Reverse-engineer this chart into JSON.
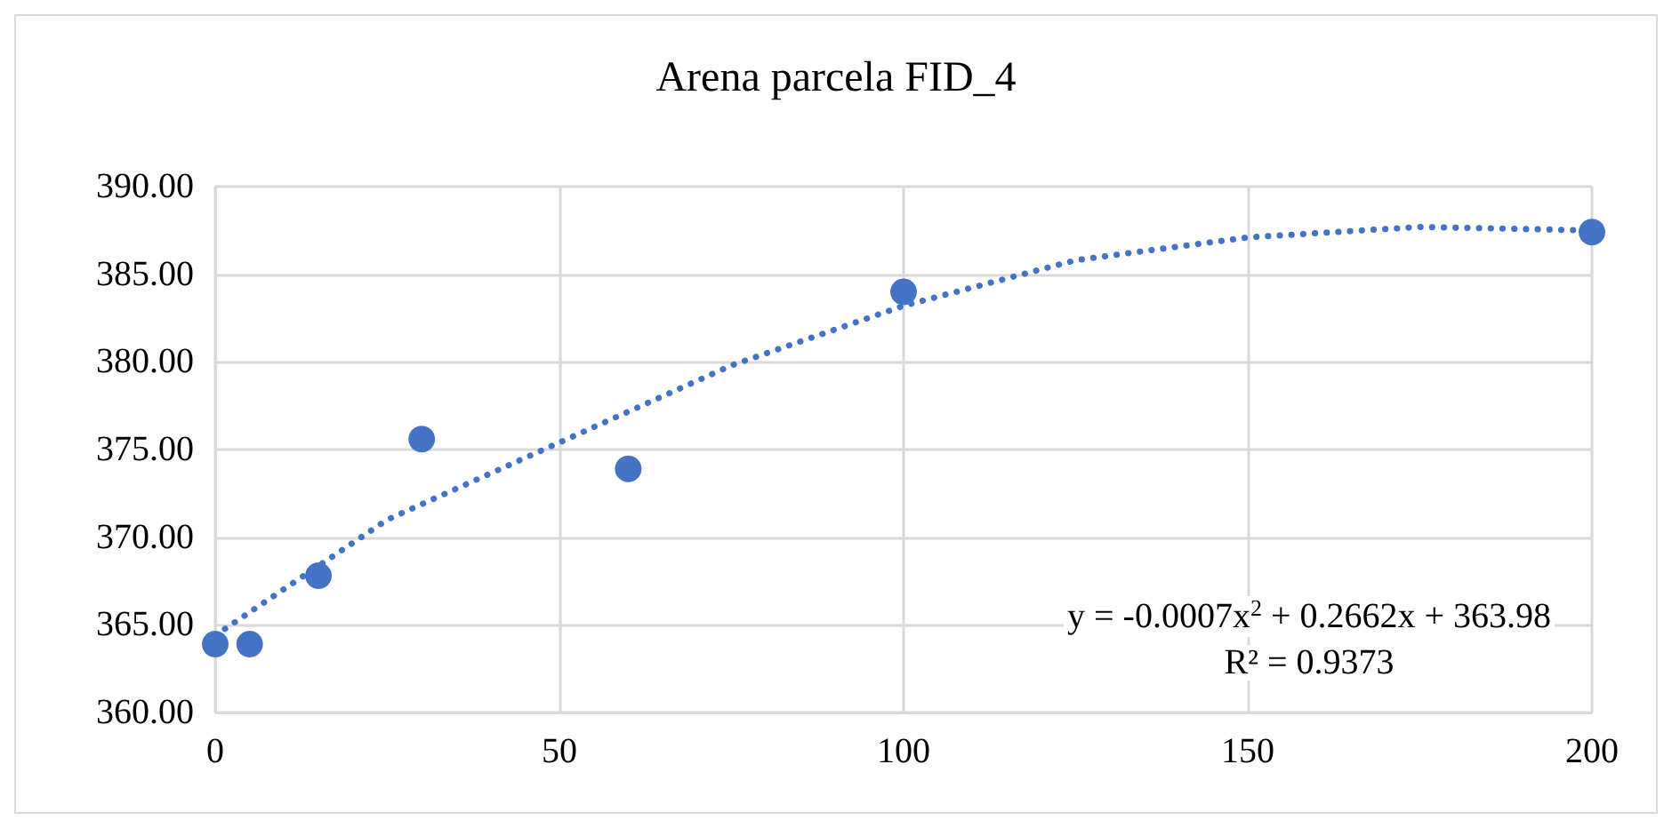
{
  "chart_data": {
    "type": "scatter",
    "title": "Arena parcela FID_4",
    "xlim": [
      0,
      200
    ],
    "xticks": [
      0,
      50,
      100,
      150,
      200
    ],
    "ylim": [
      360,
      390
    ],
    "yticks": [
      {
        "value": 360,
        "label": "360.00"
      },
      {
        "value": 365,
        "label": "365.00"
      },
      {
        "value": 370,
        "label": "370.00"
      },
      {
        "value": 375,
        "label": "375.00"
      },
      {
        "value": 380,
        "label": "380.00"
      },
      {
        "value": 385,
        "label": "385.00"
      },
      {
        "value": 390,
        "label": "390.00"
      }
    ],
    "grid": true,
    "marker": "circle",
    "series": [
      {
        "color": "#4472c4",
        "x": [
          0,
          5,
          15,
          30,
          60,
          100,
          200
        ],
        "values": [
          363.9,
          363.9,
          367.8,
          375.6,
          373.9,
          384.0,
          387.4
        ]
      },
      {
        "type": "line",
        "color": "#4472c4",
        "line_style": "dotted",
        "marker": "none",
        "x": [
          0,
          25,
          50,
          75,
          100,
          125,
          150,
          175,
          200
        ],
        "values": [
          364.4,
          371.0,
          375.4,
          379.8,
          383.2,
          385.8,
          387.1,
          387.7,
          387.5
        ]
      }
    ],
    "annotations": [
      "y = -0.0007x$^{2}$ + 0.2662x + 363.98",
      "R² = 0.9373"
    ]
  }
}
